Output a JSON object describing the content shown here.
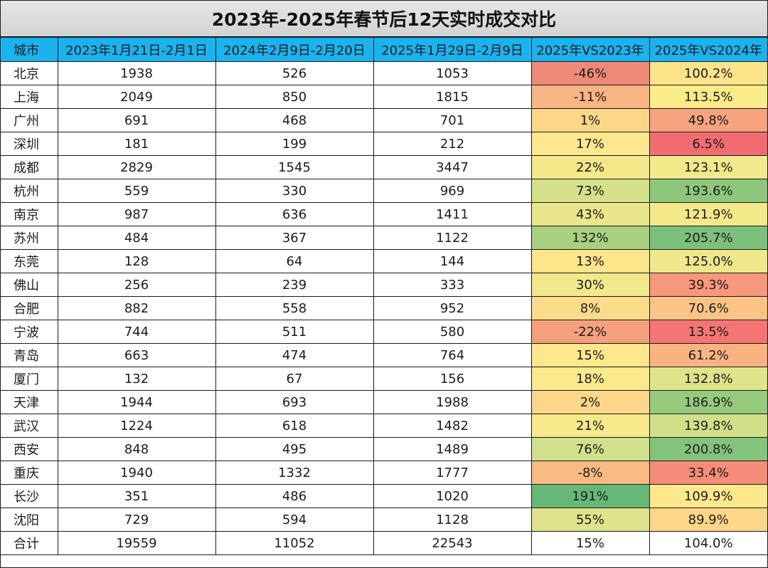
{
  "title": "2023年-2025年春节后12天实时成交对比",
  "headers": [
    "城市",
    "2023年1月21日-2月1日",
    "2024年2月9日-2月20日",
    "2025年1月29日-2月9日",
    "2025年VS2023年",
    "2025年VS2024年"
  ],
  "rows": [
    {
      "city": "北京",
      "v2023": "1938",
      "v2024": "526",
      "v2025": "1053",
      "vs2023": "-46%",
      "vs2024": "100.2%",
      "vs2023_color": "#f08a78",
      "vs2024_color": "#fde38a"
    },
    {
      "city": "上海",
      "v2023": "2049",
      "v2024": "850",
      "v2025": "1815",
      "vs2023": "-11%",
      "vs2024": "113.5%",
      "vs2023_color": "#f9b583",
      "vs2024_color": "#fbeb89"
    },
    {
      "city": "广州",
      "v2023": "691",
      "v2024": "468",
      "v2025": "701",
      "vs2023": "1%",
      "vs2024": "49.8%",
      "vs2023_color": "#fcd689",
      "vs2024_color": "#f8a37f"
    },
    {
      "city": "深圳",
      "v2023": "181",
      "v2024": "199",
      "v2025": "212",
      "vs2023": "17%",
      "vs2024": "6.5%",
      "vs2023_color": "#fee88e",
      "vs2024_color": "#f26d72"
    },
    {
      "city": "成都",
      "v2023": "2829",
      "v2024": "1545",
      "v2025": "3447",
      "vs2023": "22%",
      "vs2024": "123.1%",
      "vs2023_color": "#f5e88b",
      "vs2024_color": "#f1e98b"
    },
    {
      "city": "杭州",
      "v2023": "559",
      "v2024": "330",
      "v2025": "969",
      "vs2023": "73%",
      "vs2024": "193.6%",
      "vs2023_color": "#d4e18a",
      "vs2024_color": "#8ec67c"
    },
    {
      "city": "南京",
      "v2023": "987",
      "v2024": "636",
      "v2025": "1411",
      "vs2023": "43%",
      "vs2024": "121.9%",
      "vs2023_color": "#e9e68c",
      "vs2024_color": "#f3e98b"
    },
    {
      "city": "苏州",
      "v2023": "484",
      "v2024": "367",
      "v2025": "1122",
      "vs2023": "132%",
      "vs2024": "205.7%",
      "vs2023_color": "#a8d07f",
      "vs2024_color": "#7cc07b"
    },
    {
      "city": "东莞",
      "v2023": "128",
      "v2024": "64",
      "v2025": "144",
      "vs2023": "13%",
      "vs2024": "125.0%",
      "vs2023_color": "#fde58b",
      "vs2024_color": "#eee88b"
    },
    {
      "city": "佛山",
      "v2023": "256",
      "v2024": "239",
      "v2025": "333",
      "vs2023": "30%",
      "vs2024": "39.3%",
      "vs2023_color": "#f1e88c",
      "vs2024_color": "#f7977b"
    },
    {
      "city": "合肥",
      "v2023": "882",
      "v2024": "558",
      "v2025": "952",
      "vs2023": "8%",
      "vs2024": "70.6%",
      "vs2023_color": "#fcdc8b",
      "vs2024_color": "#fbc386"
    },
    {
      "city": "宁波",
      "v2023": "744",
      "v2024": "511",
      "v2025": "580",
      "vs2023": "-22%",
      "vs2024": "13.5%",
      "vs2023_color": "#f5a07d",
      "vs2024_color": "#f47574"
    },
    {
      "city": "青岛",
      "v2023": "663",
      "v2024": "474",
      "v2025": "764",
      "vs2023": "15%",
      "vs2024": "61.2%",
      "vs2023_color": "#fee78d",
      "vs2024_color": "#f9b382"
    },
    {
      "city": "厦门",
      "v2023": "132",
      "v2024": "67",
      "v2025": "156",
      "vs2023": "18%",
      "vs2024": "132.8%",
      "vs2023_color": "#fbe98d",
      "vs2024_color": "#dde48a"
    },
    {
      "city": "天津",
      "v2023": "1944",
      "v2024": "693",
      "v2025": "1988",
      "vs2023": "2%",
      "vs2024": "186.9%",
      "vs2023_color": "#fcd789",
      "vs2024_color": "#97c97d"
    },
    {
      "city": "武汉",
      "v2023": "1224",
      "v2024": "618",
      "v2025": "1482",
      "vs2023": "21%",
      "vs2024": "139.8%",
      "vs2023_color": "#f7e98c",
      "vs2024_color": "#cfe089"
    },
    {
      "city": "西安",
      "v2023": "848",
      "v2024": "495",
      "v2025": "1489",
      "vs2023": "76%",
      "vs2024": "200.8%",
      "vs2023_color": "#d1e08a",
      "vs2024_color": "#84c37c"
    },
    {
      "city": "重庆",
      "v2023": "1940",
      "v2024": "1332",
      "v2025": "1777",
      "vs2023": "-8%",
      "vs2024": "33.4%",
      "vs2023_color": "#f9bb84",
      "vs2024_color": "#f48c78"
    },
    {
      "city": "长沙",
      "v2023": "351",
      "v2024": "486",
      "v2025": "1020",
      "vs2023": "191%",
      "vs2024": "109.9%",
      "vs2023_color": "#67b877",
      "vs2024_color": "#fde98b"
    },
    {
      "city": "沈阳",
      "v2023": "729",
      "v2024": "594",
      "v2025": "1128",
      "vs2023": "55%",
      "vs2024": "89.9%",
      "vs2023_color": "#dfe38b",
      "vs2024_color": "#fdd688"
    }
  ],
  "total": {
    "city": "合计",
    "v2023": "19559",
    "v2024": "11052",
    "v2025": "22543",
    "vs2023": "15%",
    "vs2024": "104.0%"
  }
}
